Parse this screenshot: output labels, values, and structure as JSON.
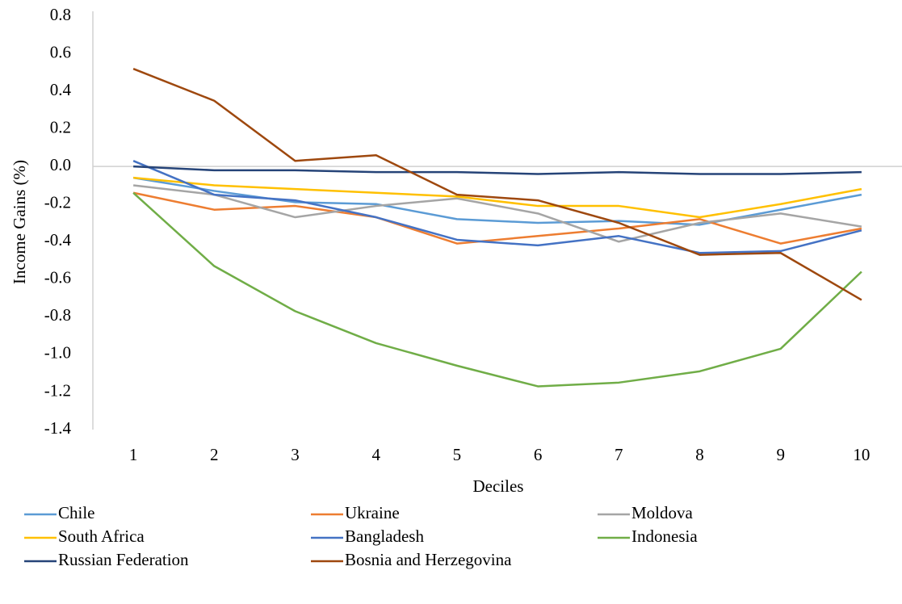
{
  "chart_data": {
    "type": "line",
    "x_label": "Deciles",
    "y_label": "Income Gains (%)",
    "categories": [
      1,
      2,
      3,
      4,
      5,
      6,
      7,
      8,
      9,
      10
    ],
    "ylim": [
      -1.4,
      0.8
    ],
    "yticks": [
      0.8,
      0.6,
      0.4,
      0.2,
      {
        "value": 0,
        "label": "0.0"
      },
      -0.2,
      -0.4,
      -0.6,
      -0.8,
      {
        "value": -1,
        "label": "-1.0"
      },
      -1.2,
      -1.4
    ],
    "grid": false,
    "series": [
      {
        "name": "Chile",
        "color": "#5b9bd5",
        "values": [
          -0.06,
          -0.13,
          -0.19,
          -0.2,
          -0.28,
          -0.3,
          -0.29,
          -0.31,
          -0.23,
          -0.15
        ]
      },
      {
        "name": "Ukraine",
        "color": "#ed7d31",
        "values": [
          -0.14,
          -0.23,
          -0.21,
          -0.27,
          -0.41,
          -0.37,
          -0.33,
          -0.28,
          -0.41,
          -0.33
        ]
      },
      {
        "name": "Moldova",
        "color": "#a5a5a5",
        "values": [
          -0.1,
          -0.15,
          -0.27,
          -0.21,
          -0.17,
          -0.25,
          -0.4,
          -0.3,
          -0.25,
          -0.32
        ]
      },
      {
        "name": "South Africa",
        "color": "#ffc000",
        "values": [
          -0.06,
          -0.1,
          -0.12,
          -0.14,
          -0.16,
          -0.21,
          -0.21,
          -0.27,
          -0.2,
          -0.12
        ]
      },
      {
        "name": "Bangladesh",
        "color": "#4472c4",
        "values": [
          0.03,
          -0.15,
          -0.18,
          -0.27,
          -0.39,
          -0.42,
          -0.37,
          -0.46,
          -0.45,
          -0.34
        ]
      },
      {
        "name": "Indonesia",
        "color": "#70ad47",
        "values": [
          -0.14,
          -0.53,
          -0.77,
          -0.94,
          -1.06,
          -1.17,
          -1.15,
          -1.09,
          -0.97,
          -0.56
        ]
      },
      {
        "name": "Russian Federation",
        "color": "#264478",
        "values": [
          0,
          -0.02,
          -0.02,
          -0.03,
          -0.03,
          -0.04,
          -0.03,
          -0.04,
          -0.04,
          -0.03
        ]
      },
      {
        "name": "Bosnia and Herzegovina",
        "color": "#9e480e",
        "values": [
          0.52,
          0.35,
          0.03,
          0.06,
          -0.15,
          -0.18,
          -0.3,
          -0.47,
          -0.46,
          -0.71
        ]
      }
    ]
  }
}
